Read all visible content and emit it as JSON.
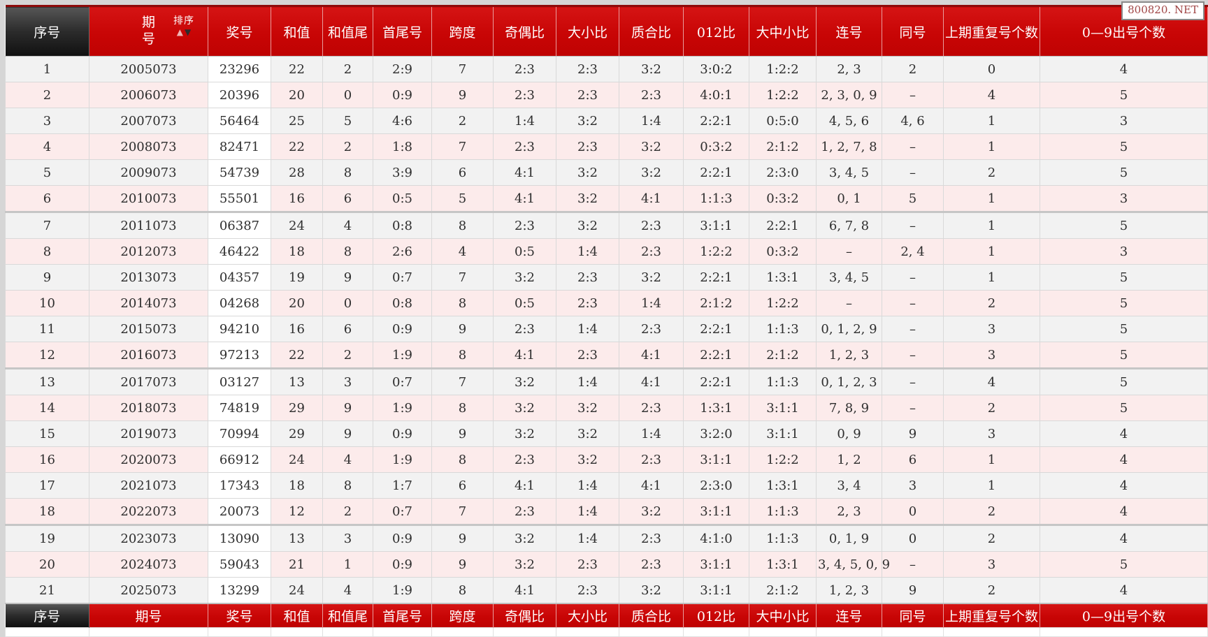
{
  "watermark": "800820. NET",
  "colors": {
    "header_red": "#c80505",
    "header_dark_cell": "#2b2b2b",
    "row_gray": "#f2f2f2",
    "row_pink": "#fcebeb",
    "prize_cell_white": "#ffffff",
    "header_text": "#ffffff",
    "body_text": "#2e2e2e",
    "sort_arrow_up": "#f0b4b4",
    "sort_arrow_down": "#2d2d2d"
  },
  "table": {
    "group_size": 6,
    "sort": {
      "label": "排序",
      "up_icon": "▲",
      "down_icon": "▼"
    },
    "columns": [
      {
        "key": "xuhao",
        "label": "序号",
        "dark": true
      },
      {
        "key": "qihao",
        "label": "期号",
        "stacked": true,
        "sortable": true
      },
      {
        "key": "jianghao",
        "label": "奖号",
        "prize": true
      },
      {
        "key": "hezhi",
        "label": "和值"
      },
      {
        "key": "hezhiwei",
        "label": "和值尾"
      },
      {
        "key": "shouweihao",
        "label": "首尾号"
      },
      {
        "key": "kuadu",
        "label": "跨度"
      },
      {
        "key": "jioubi",
        "label": "奇偶比"
      },
      {
        "key": "daxiaobi",
        "label": "大小比"
      },
      {
        "key": "zhihebi",
        "label": "质合比"
      },
      {
        "key": "012bi",
        "label": "012比"
      },
      {
        "key": "dazhongxiaobi",
        "label": "大中小比"
      },
      {
        "key": "lianhao",
        "label": "连号"
      },
      {
        "key": "tonghao",
        "label": "同号"
      },
      {
        "key": "shangqichongfu",
        "label": "上期重复号个数"
      },
      {
        "key": "chuhaogeshu",
        "label": "0—9出号个数"
      }
    ],
    "rows": [
      [
        "1",
        "2005073",
        "23296",
        "22",
        "2",
        "2:9",
        "7",
        "2:3",
        "2:3",
        "3:2",
        "3:0:2",
        "1:2:2",
        "2, 3",
        "2",
        "0",
        "4"
      ],
      [
        "2",
        "2006073",
        "20396",
        "20",
        "0",
        "0:9",
        "9",
        "2:3",
        "2:3",
        "2:3",
        "4:0:1",
        "1:2:2",
        "2, 3, 0, 9",
        "–",
        "4",
        "5"
      ],
      [
        "3",
        "2007073",
        "56464",
        "25",
        "5",
        "4:6",
        "2",
        "1:4",
        "3:2",
        "1:4",
        "2:2:1",
        "0:5:0",
        "4, 5, 6",
        "4, 6",
        "1",
        "3"
      ],
      [
        "4",
        "2008073",
        "82471",
        "22",
        "2",
        "1:8",
        "7",
        "2:3",
        "2:3",
        "3:2",
        "0:3:2",
        "2:1:2",
        "1, 2, 7, 8",
        "–",
        "1",
        "5"
      ],
      [
        "5",
        "2009073",
        "54739",
        "28",
        "8",
        "3:9",
        "6",
        "4:1",
        "3:2",
        "3:2",
        "2:2:1",
        "2:3:0",
        "3, 4, 5",
        "–",
        "2",
        "5"
      ],
      [
        "6",
        "2010073",
        "55501",
        "16",
        "6",
        "0:5",
        "5",
        "4:1",
        "3:2",
        "4:1",
        "1:1:3",
        "0:3:2",
        "0, 1",
        "5",
        "1",
        "3"
      ],
      [
        "7",
        "2011073",
        "06387",
        "24",
        "4",
        "0:8",
        "8",
        "2:3",
        "3:2",
        "2:3",
        "3:1:1",
        "2:2:1",
        "6, 7, 8",
        "–",
        "1",
        "5"
      ],
      [
        "8",
        "2012073",
        "46422",
        "18",
        "8",
        "2:6",
        "4",
        "0:5",
        "1:4",
        "2:3",
        "1:2:2",
        "0:3:2",
        "–",
        "2, 4",
        "1",
        "3"
      ],
      [
        "9",
        "2013073",
        "04357",
        "19",
        "9",
        "0:7",
        "7",
        "3:2",
        "2:3",
        "3:2",
        "2:2:1",
        "1:3:1",
        "3, 4, 5",
        "–",
        "1",
        "5"
      ],
      [
        "10",
        "2014073",
        "04268",
        "20",
        "0",
        "0:8",
        "8",
        "0:5",
        "2:3",
        "1:4",
        "2:1:2",
        "1:2:2",
        "–",
        "–",
        "2",
        "5"
      ],
      [
        "11",
        "2015073",
        "94210",
        "16",
        "6",
        "0:9",
        "9",
        "2:3",
        "1:4",
        "2:3",
        "2:2:1",
        "1:1:3",
        "0, 1, 2, 9",
        "–",
        "3",
        "5"
      ],
      [
        "12",
        "2016073",
        "97213",
        "22",
        "2",
        "1:9",
        "8",
        "4:1",
        "2:3",
        "4:1",
        "2:2:1",
        "2:1:2",
        "1, 2, 3",
        "–",
        "3",
        "5"
      ],
      [
        "13",
        "2017073",
        "03127",
        "13",
        "3",
        "0:7",
        "7",
        "3:2",
        "1:4",
        "4:1",
        "2:2:1",
        "1:1:3",
        "0, 1, 2, 3",
        "–",
        "4",
        "5"
      ],
      [
        "14",
        "2018073",
        "74819",
        "29",
        "9",
        "1:9",
        "8",
        "3:2",
        "3:2",
        "2:3",
        "1:3:1",
        "3:1:1",
        "7, 8, 9",
        "–",
        "2",
        "5"
      ],
      [
        "15",
        "2019073",
        "70994",
        "29",
        "9",
        "0:9",
        "9",
        "3:2",
        "3:2",
        "1:4",
        "3:2:0",
        "3:1:1",
        "0, 9",
        "9",
        "3",
        "4"
      ],
      [
        "16",
        "2020073",
        "66912",
        "24",
        "4",
        "1:9",
        "8",
        "2:3",
        "3:2",
        "2:3",
        "3:1:1",
        "1:2:2",
        "1, 2",
        "6",
        "1",
        "4"
      ],
      [
        "17",
        "2021073",
        "17343",
        "18",
        "8",
        "1:7",
        "6",
        "4:1",
        "1:4",
        "4:1",
        "2:3:0",
        "1:3:1",
        "3, 4",
        "3",
        "1",
        "4"
      ],
      [
        "18",
        "2022073",
        "20073",
        "12",
        "2",
        "0:7",
        "7",
        "2:3",
        "1:4",
        "3:2",
        "3:1:1",
        "1:1:3",
        "2, 3",
        "0",
        "2",
        "4"
      ],
      [
        "19",
        "2023073",
        "13090",
        "13",
        "3",
        "0:9",
        "9",
        "3:2",
        "1:4",
        "2:3",
        "4:1:0",
        "1:1:3",
        "0, 1, 9",
        "0",
        "2",
        "4"
      ],
      [
        "20",
        "2024073",
        "59043",
        "21",
        "1",
        "0:9",
        "9",
        "3:2",
        "2:3",
        "2:3",
        "3:1:1",
        "1:3:1",
        "3, 4, 5, 0, 9",
        "–",
        "3",
        "5"
      ],
      [
        "21",
        "2025073",
        "13299",
        "24",
        "4",
        "1:9",
        "8",
        "4:1",
        "2:3",
        "3:2",
        "3:1:1",
        "2:1:2",
        "1, 2, 3",
        "9",
        "2",
        "4"
      ]
    ],
    "footer_repeats_headers": true
  }
}
